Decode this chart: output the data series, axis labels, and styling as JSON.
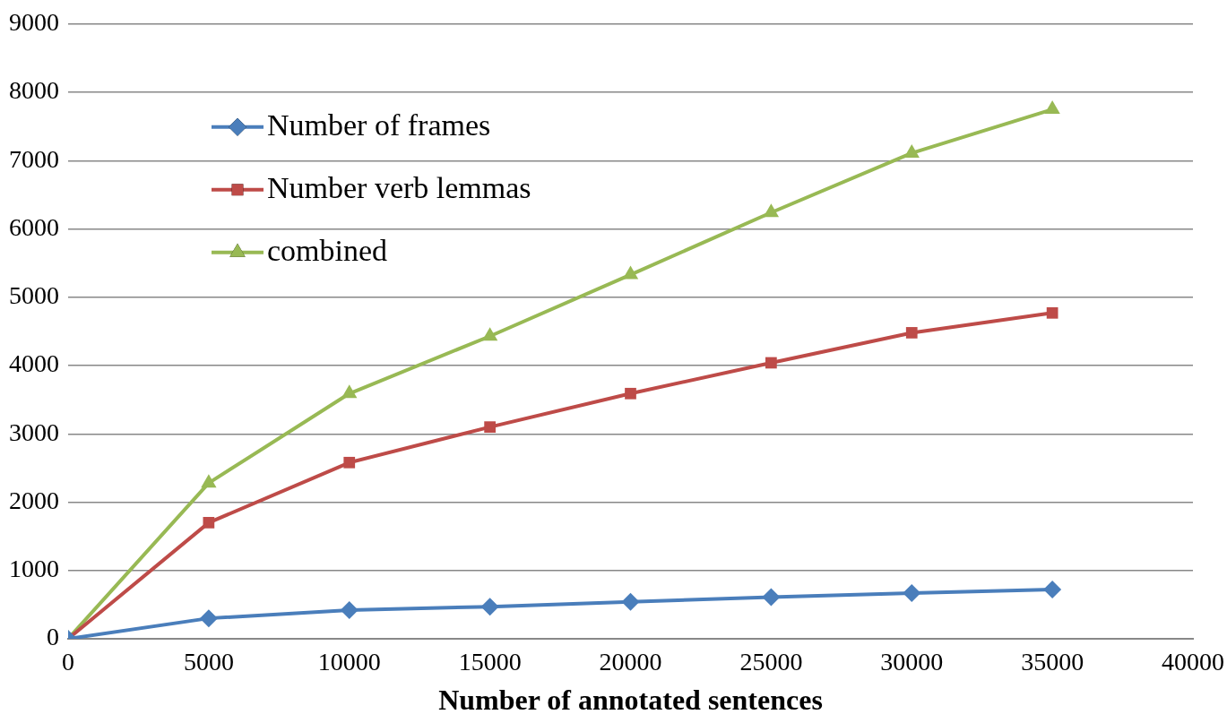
{
  "chart_data": {
    "type": "line",
    "xlabel": "Number of annotated sentences",
    "x": [
      0,
      5000,
      10000,
      15000,
      20000,
      25000,
      30000,
      35000
    ],
    "series": [
      {
        "name": "Number of frames",
        "color": "#4a7ebb",
        "marker": "diamond",
        "values": [
          0,
          300,
          420,
          470,
          540,
          610,
          670,
          720
        ]
      },
      {
        "name": "Number verb lemmas",
        "color": "#be4b48",
        "marker": "square",
        "values": [
          0,
          1700,
          2580,
          3100,
          3590,
          4040,
          4480,
          4770
        ]
      },
      {
        "name": "combined",
        "color": "#98b954",
        "marker": "triangle",
        "values": [
          0,
          2280,
          3590,
          4430,
          5330,
          6240,
          7110,
          7750
        ]
      }
    ],
    "xlim": [
      0,
      40000
    ],
    "xticks": [
      0,
      5000,
      10000,
      15000,
      20000,
      25000,
      30000,
      35000,
      40000
    ],
    "ylim": [
      0,
      9000
    ],
    "yticks": [
      0,
      1000,
      2000,
      3000,
      4000,
      5000,
      6000,
      7000,
      8000,
      9000
    ],
    "grid": "y",
    "legend": "top left",
    "line_style": "solid"
  }
}
